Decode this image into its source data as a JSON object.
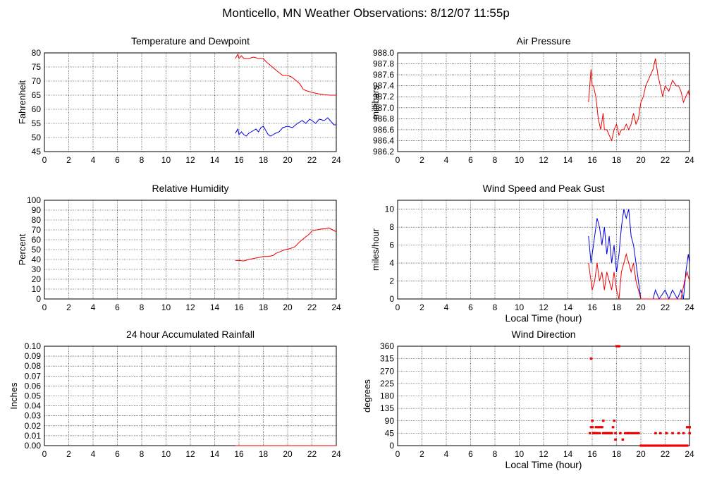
{
  "page": {
    "title": "Monticello, MN Weather Observations: 8/12/07 11:55p",
    "colors": {
      "red": "#ee0000",
      "blue": "#0000dd",
      "grid": "#000000"
    }
  },
  "chart_data": [
    {
      "id": "temp",
      "type": "line",
      "title": "Temperature and Dewpoint",
      "xlabel": "",
      "ylabel": "Fahrenheit",
      "xlim": [
        0,
        24
      ],
      "ylim": [
        45,
        80
      ],
      "xticks": [
        0,
        2,
        4,
        6,
        8,
        10,
        12,
        14,
        16,
        18,
        20,
        22,
        24
      ],
      "yticks": [
        45,
        50,
        55,
        60,
        65,
        70,
        75,
        80
      ],
      "ytick_labels": [
        "45",
        "50",
        "55",
        "60",
        "65",
        "70",
        "75",
        "80"
      ],
      "series": [
        {
          "color": "#ee0000",
          "x": [
            15.7,
            15.9,
            16.0,
            16.2,
            16.4,
            16.8,
            17.2,
            17.6,
            18.0,
            18.2,
            18.6,
            19.0,
            19.3,
            19.6,
            20.0,
            20.3,
            20.6,
            21.0,
            21.3,
            21.6,
            22.0,
            22.5,
            23.0,
            23.5,
            24.0
          ],
          "y": [
            78,
            79.5,
            78,
            79,
            78,
            78,
            78.5,
            78,
            78,
            77,
            75.5,
            74,
            73,
            72,
            72,
            71.5,
            70.5,
            69,
            67,
            66.5,
            66,
            65.5,
            65.2,
            65,
            65
          ]
        },
        {
          "color": "#0000dd",
          "x": [
            15.7,
            15.9,
            16.0,
            16.2,
            16.4,
            16.6,
            16.8,
            17.0,
            17.2,
            17.4,
            17.6,
            17.8,
            18.0,
            18.2,
            18.4,
            18.6,
            18.8,
            19.0,
            19.3,
            19.6,
            20.0,
            20.4,
            20.8,
            21.0,
            21.2,
            21.5,
            21.8,
            22.0,
            22.3,
            22.6,
            23.0,
            23.3,
            23.6,
            23.8,
            24.0
          ],
          "y": [
            51.5,
            53,
            51,
            52,
            51,
            50.5,
            51.5,
            52,
            52.5,
            53,
            52,
            53.5,
            54,
            52.5,
            51,
            50.5,
            51,
            51.5,
            52,
            53.5,
            54,
            53.5,
            55,
            55.5,
            56,
            55,
            56.5,
            56,
            55,
            56.5,
            56,
            57,
            55.5,
            54.5,
            54.5
          ]
        }
      ]
    },
    {
      "id": "pres",
      "type": "line",
      "title": "Air Pressure",
      "xlabel": "",
      "ylabel": "millibars",
      "xlim": [
        0,
        24
      ],
      "ylim": [
        986.2,
        988.0
      ],
      "xticks": [
        0,
        2,
        4,
        6,
        8,
        10,
        12,
        14,
        16,
        18,
        20,
        22,
        24
      ],
      "yticks": [
        986.2,
        986.4,
        986.6,
        986.8,
        987.0,
        987.2,
        987.4,
        987.6,
        987.8,
        988.0
      ],
      "ytick_labels": [
        "986.2",
        "986.4",
        "986.6",
        "986.8",
        "987.0",
        "987.2",
        "987.4",
        "987.6",
        "987.8",
        "988.0"
      ],
      "series": [
        {
          "color": "#ee0000",
          "x": [
            15.7,
            15.9,
            16.0,
            16.1,
            16.3,
            16.5,
            16.7,
            16.9,
            17.0,
            17.2,
            17.4,
            17.6,
            17.8,
            18.0,
            18.2,
            18.4,
            18.6,
            18.8,
            19.0,
            19.2,
            19.4,
            19.6,
            19.8,
            20.0,
            20.2,
            20.4,
            20.6,
            20.8,
            21.0,
            21.2,
            21.4,
            21.6,
            21.8,
            22.0,
            22.3,
            22.6,
            22.9,
            23.1,
            23.3,
            23.5,
            23.7,
            23.9,
            24.0
          ],
          "y": [
            987.1,
            987.7,
            987.4,
            987.4,
            987.2,
            986.8,
            986.6,
            986.9,
            986.6,
            986.6,
            986.5,
            986.4,
            986.6,
            986.7,
            986.5,
            986.6,
            986.6,
            986.7,
            986.6,
            986.7,
            986.9,
            986.7,
            986.8,
            987.1,
            987.2,
            987.4,
            987.5,
            987.6,
            987.7,
            987.9,
            987.6,
            987.4,
            987.2,
            987.4,
            987.3,
            987.5,
            987.4,
            987.4,
            987.3,
            987.1,
            987.2,
            987.3,
            987.2
          ]
        }
      ]
    },
    {
      "id": "rh",
      "type": "line",
      "title": "Relative Humidity",
      "xlabel": "",
      "ylabel": "Percent",
      "xlim": [
        0,
        24
      ],
      "ylim": [
        0,
        100
      ],
      "xticks": [
        0,
        2,
        4,
        6,
        8,
        10,
        12,
        14,
        16,
        18,
        20,
        22,
        24
      ],
      "yticks": [
        0,
        10,
        20,
        30,
        40,
        50,
        60,
        70,
        80,
        90,
        100
      ],
      "ytick_labels": [
        "0",
        "10",
        "20",
        "30",
        "40",
        "50",
        "60",
        "70",
        "80",
        "90",
        "100"
      ],
      "series": [
        {
          "color": "#ee0000",
          "x": [
            15.7,
            16.0,
            16.4,
            16.8,
            17.2,
            17.6,
            18.0,
            18.4,
            18.8,
            19.0,
            19.4,
            19.8,
            20.2,
            20.6,
            21.0,
            21.4,
            21.8,
            22.0,
            22.4,
            22.8,
            23.0,
            23.4,
            23.7,
            24.0
          ],
          "y": [
            39,
            39,
            38.5,
            40,
            41,
            42,
            43,
            43,
            44,
            46,
            48,
            50,
            51,
            53,
            58,
            62,
            66,
            69,
            70,
            71,
            71,
            72,
            70,
            68
          ]
        }
      ]
    },
    {
      "id": "wind",
      "type": "line",
      "title": "Wind Speed and Peak Gust",
      "xlabel": "Local Time (hour)",
      "ylabel": "miles/hour",
      "xlim": [
        0,
        24
      ],
      "ylim": [
        0,
        11
      ],
      "xticks": [
        0,
        2,
        4,
        6,
        8,
        10,
        12,
        14,
        16,
        18,
        20,
        22,
        24
      ],
      "yticks": [
        0,
        2,
        4,
        6,
        8,
        10
      ],
      "ytick_labels": [
        "0",
        "2",
        "4",
        "6",
        "8",
        "10"
      ],
      "series": [
        {
          "color": "#0000dd",
          "x": [
            15.7,
            15.9,
            16.0,
            16.2,
            16.4,
            16.6,
            16.8,
            17.0,
            17.2,
            17.4,
            17.6,
            17.8,
            18.0,
            18.2,
            18.4,
            18.6,
            18.8,
            19.0,
            19.2,
            19.4,
            19.6,
            19.8,
            20.0,
            20.2,
            21.0,
            21.2,
            21.5,
            22.0,
            22.3,
            22.6,
            23.0,
            23.3,
            23.5,
            23.7,
            23.9,
            24.0
          ],
          "y": [
            7,
            4,
            5,
            7,
            9,
            8,
            6,
            8,
            5,
            7,
            4,
            6,
            3,
            5,
            8,
            10,
            9,
            10,
            7,
            6,
            4,
            2,
            0,
            0,
            0,
            1,
            0,
            1,
            0,
            1,
            0,
            1,
            0,
            3,
            5,
            4
          ]
        },
        {
          "color": "#ee0000",
          "x": [
            15.7,
            15.9,
            16.0,
            16.2,
            16.4,
            16.6,
            16.8,
            17.0,
            17.2,
            17.4,
            17.6,
            17.8,
            18.0,
            18.2,
            18.4,
            18.6,
            18.8,
            19.0,
            19.2,
            19.4,
            19.6,
            19.8,
            20.0,
            23.3,
            23.6,
            23.8,
            24.0
          ],
          "y": [
            4,
            2,
            1,
            2,
            4,
            2,
            3,
            1,
            3,
            2,
            1,
            3,
            1,
            0,
            3,
            4,
            5,
            4,
            3,
            4,
            2,
            1,
            0,
            0,
            2,
            3,
            2
          ]
        }
      ]
    },
    {
      "id": "rain",
      "type": "line",
      "title": "24 hour Accumulated Rainfall",
      "xlabel": "",
      "ylabel": "Inches",
      "xlim": [
        0,
        24
      ],
      "ylim": [
        0,
        0.1
      ],
      "xticks": [
        0,
        2,
        4,
        6,
        8,
        10,
        12,
        14,
        16,
        18,
        20,
        22,
        24
      ],
      "yticks": [
        0,
        0.01,
        0.02,
        0.03,
        0.04,
        0.05,
        0.06,
        0.07,
        0.08,
        0.09,
        0.1
      ],
      "ytick_labels": [
        "0.00",
        "0.01",
        "0.02",
        "0.03",
        "0.04",
        "0.05",
        "0.06",
        "0.07",
        "0.08",
        "0.09",
        "0.10"
      ],
      "series": [
        {
          "color": "#ee0000",
          "x": [
            15.7,
            24.0
          ],
          "y": [
            0,
            0
          ]
        }
      ]
    },
    {
      "id": "wdir",
      "type": "scatter",
      "title": "Wind Direction",
      "xlabel": "Local Time (hour)",
      "ylabel": "degrees",
      "xlim": [
        0,
        24
      ],
      "ylim": [
        0,
        360
      ],
      "xticks": [
        0,
        2,
        4,
        6,
        8,
        10,
        12,
        14,
        16,
        18,
        20,
        22,
        24
      ],
      "yticks": [
        0,
        45,
        90,
        135,
        180,
        225,
        270,
        315,
        360
      ],
      "ytick_labels": [
        "0",
        "45",
        "90",
        "135",
        "180",
        "225",
        "270",
        "315",
        "360"
      ],
      "series": [
        {
          "color": "#ee0000",
          "x": [
            15.8,
            15.9,
            16.0,
            16.1,
            15.9,
            16.1,
            16.2,
            16.3,
            16.4,
            16.5,
            16.6,
            16.7,
            16.8,
            16.9,
            17.0,
            17.1,
            17.2,
            17.3,
            17.4,
            17.5,
            17.6,
            17.7,
            17.8,
            17.9,
            18.0,
            18.1,
            18.2,
            18.3,
            18.5,
            18.7,
            18.9,
            19.0,
            19.2,
            19.4,
            19.6,
            19.8,
            20.0,
            20.2,
            20.4,
            20.6,
            20.8,
            21.0,
            21.2,
            21.4,
            21.6,
            21.8,
            22.0,
            22.2,
            22.4,
            22.6,
            22.8,
            23.0,
            23.2,
            23.4,
            23.6,
            23.8,
            24.0,
            23.8,
            24.0,
            21.2,
            21.6,
            22.1,
            22.6,
            23.1,
            23.5,
            16.9,
            17.9,
            16.2,
            16.0
          ],
          "y": [
            45,
            67,
            90,
            45,
            315,
            45,
            45,
            67,
            45,
            67,
            45,
            67,
            67,
            90,
            45,
            45,
            45,
            45,
            45,
            45,
            45,
            67,
            90,
            45,
            360,
            360,
            360,
            45,
            22,
            45,
            45,
            45,
            45,
            45,
            45,
            45,
            0,
            0,
            0,
            0,
            0,
            0,
            0,
            0,
            0,
            0,
            0,
            0,
            0,
            0,
            0,
            0,
            0,
            0,
            0,
            67,
            67,
            0,
            45,
            45,
            45,
            45,
            45,
            45,
            45,
            45,
            22,
            45,
            67
          ]
        }
      ]
    }
  ]
}
